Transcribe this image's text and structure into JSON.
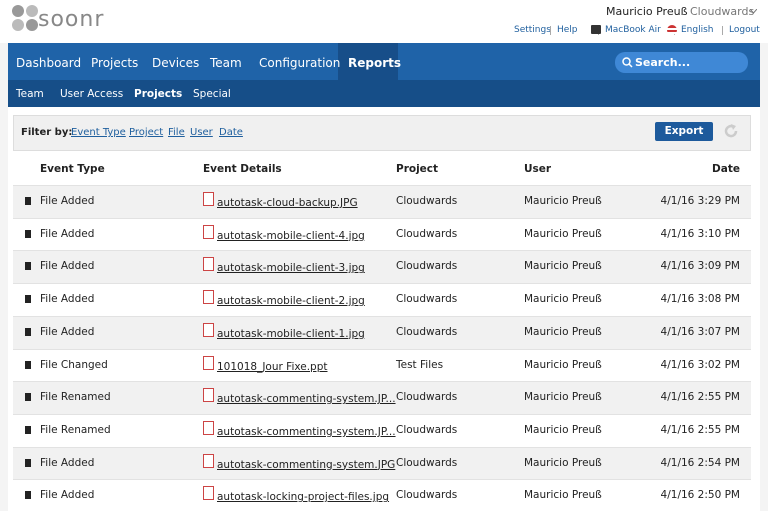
{
  "header": {
    "logo": "soonr",
    "user_name": "Mauricio Preuß",
    "account": "Cloudwards",
    "links": [
      "Settings",
      "Help",
      "MacBook Air",
      "English",
      "Logout"
    ]
  },
  "nav": {
    "tabs": [
      "Dashboard",
      "Projects",
      "Devices",
      "Team",
      "Configuration",
      "Reports"
    ],
    "active_tab": 5,
    "search_placeholder": "Search..."
  },
  "subnav": {
    "tabs": [
      "Team",
      "User Access",
      "Projects",
      "Special"
    ],
    "active_tab": 2
  },
  "filter": {
    "label": "Filter by:",
    "links": [
      "Event Type",
      "Project",
      "File",
      "User",
      "Date"
    ],
    "export_button": "Export"
  },
  "table": {
    "columns": [
      "Event Type",
      "Event Details",
      "Project",
      "User",
      "Date"
    ],
    "rows": [
      [
        "File Added",
        "autotask-cloud-backup.JPG",
        "Cloudwards",
        "Mauricio Preuß",
        "4/1/16 3:29 PM"
      ],
      [
        "File Added",
        "autotask-mobile-client-4.jpg",
        "Cloudwards",
        "Mauricio Preuß",
        "4/1/16 3:10 PM"
      ],
      [
        "File Added",
        "autotask-mobile-client-3.jpg",
        "Cloudwards",
        "Mauricio Preuß",
        "4/1/16 3:09 PM"
      ],
      [
        "File Added",
        "autotask-mobile-client-2.jpg",
        "Cloudwards",
        "Mauricio Preuß",
        "4/1/16 3:08 PM"
      ],
      [
        "File Added",
        "autotask-mobile-client-1.jpg",
        "Cloudwards",
        "Mauricio Preuß",
        "4/1/16 3:07 PM"
      ],
      [
        "File Changed",
        "101018_Jour Fixe.ppt",
        "Test Files",
        "Mauricio Preuß",
        "4/1/16 3:02 PM"
      ],
      [
        "File Renamed",
        "autotask-commenting-system.JP...",
        "Cloudwards",
        "Mauricio Preuß",
        "4/1/16 2:55 PM"
      ],
      [
        "File Renamed",
        "autotask-commenting-system.JP...",
        "Cloudwards",
        "Mauricio Preuß",
        "4/1/16 2:55 PM"
      ],
      [
        "File Added",
        "autotask-commenting-system.JPG",
        "Cloudwards",
        "Mauricio Preuß",
        "4/1/16 2:54 PM"
      ],
      [
        "File Added",
        "autotask-locking-project-files.jpg",
        "Cloudwards",
        "Mauricio Preuß",
        "4/1/16 2:50 PM"
      ]
    ]
  }
}
